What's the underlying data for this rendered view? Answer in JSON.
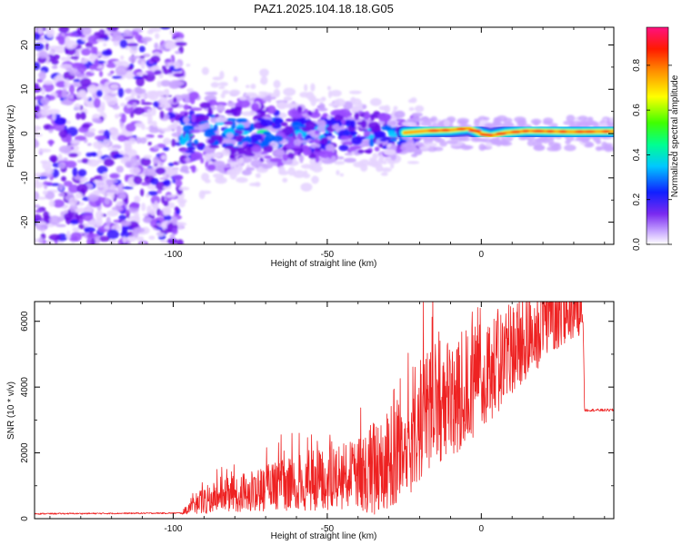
{
  "title": "PAZ1.2025.104.18.18.G05",
  "chart_data": [
    {
      "type": "heatmap",
      "xlabel": "Height of straight line (km)",
      "ylabel": "Frequency (Hz)",
      "xlim": [
        -145,
        43
      ],
      "ylim": [
        -25,
        24
      ],
      "xticks": [
        -100,
        -50,
        0
      ],
      "yticks": [
        20,
        10,
        0,
        -10,
        -20
      ],
      "colorbar": {
        "label": "Normalized spectral amplitude",
        "ticks": [
          0.0,
          0.2,
          0.4,
          0.6,
          0.8
        ],
        "range": [
          0,
          0.97
        ],
        "colormap": [
          "#ffffff",
          "#9a4dff",
          "#5000e0",
          "#0030ff",
          "#00d8ff",
          "#00ff40",
          "#ffff00",
          "#ff8000",
          "#ff0000",
          "#ff1080"
        ]
      },
      "ridge_frequency": [
        {
          "x": -25,
          "y": 0.2
        },
        {
          "x": -18,
          "y": 0.6
        },
        {
          "x": -10,
          "y": 0.8
        },
        {
          "x": -4,
          "y": 1.2
        },
        {
          "x": 0,
          "y": 0.0
        },
        {
          "x": 3,
          "y": -0.5
        },
        {
          "x": 8,
          "y": 0.2
        },
        {
          "x": 15,
          "y": 0.6
        },
        {
          "x": 30,
          "y": 0.4
        },
        {
          "x": 43,
          "y": 0.5
        }
      ]
    },
    {
      "type": "line",
      "xlabel": "Height of straight line (km)",
      "ylabel": "SNR (10 * v/v)",
      "xlim": [
        -145,
        43
      ],
      "ylim": [
        0,
        6600
      ],
      "xticks": [
        -100,
        -50,
        0
      ],
      "yticks": [
        0,
        2000,
        4000,
        6000
      ],
      "color": "#ee2222",
      "series": [
        {
          "values": [
            {
              "x": -145,
              "y": 150
            },
            {
              "x": -120,
              "y": 160
            },
            {
              "x": -97,
              "y": 170
            },
            {
              "x": -90,
              "y": 500
            },
            {
              "x": -75,
              "y": 750
            },
            {
              "x": -60,
              "y": 950
            },
            {
              "x": -45,
              "y": 1100
            },
            {
              "x": -35,
              "y": 1300
            },
            {
              "x": -28,
              "y": 2000
            },
            {
              "x": -20,
              "y": 2700
            },
            {
              "x": -10,
              "y": 3400
            },
            {
              "x": 0,
              "y": 4000
            },
            {
              "x": 10,
              "y": 5000
            },
            {
              "x": 20,
              "y": 5800
            },
            {
              "x": 28,
              "y": 6200
            },
            {
              "x": 33,
              "y": 6350
            },
            {
              "x": 33.5,
              "y": 3300
            },
            {
              "x": 43,
              "y": 3300
            }
          ],
          "noise": [
            {
              "x": -145,
              "y": 40
            },
            {
              "x": -97,
              "y": 40
            },
            {
              "x": -90,
              "y": 350
            },
            {
              "x": -60,
              "y": 700
            },
            {
              "x": -40,
              "y": 900
            },
            {
              "x": -30,
              "y": 1600
            },
            {
              "x": -20,
              "y": 1700
            },
            {
              "x": 0,
              "y": 1400
            },
            {
              "x": 20,
              "y": 1100
            },
            {
              "x": 33,
              "y": 700
            },
            {
              "x": 33.5,
              "y": 80
            },
            {
              "x": 43,
              "y": 80
            }
          ]
        }
      ]
    }
  ]
}
